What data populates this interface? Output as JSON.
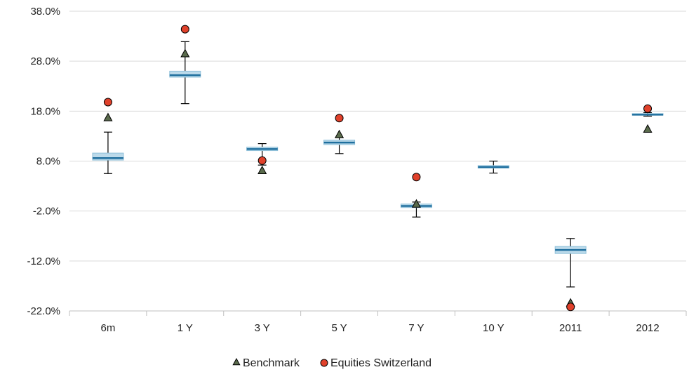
{
  "chart_data": {
    "type": "box",
    "categories": [
      "6m",
      "1 Y",
      "3 Y",
      "5 Y",
      "7 Y",
      "10 Y",
      "2011",
      "2012"
    ],
    "ylim": [
      -22,
      38
    ],
    "yticks": [
      -22,
      -12,
      -2,
      8,
      18,
      28,
      38
    ],
    "ytick_labels": [
      "-22.0%",
      "-12.0%",
      "-2.0%",
      "8.0%",
      "18.0%",
      "28.0%",
      "38.0%"
    ],
    "grid": true,
    "legend_position": "bottom",
    "box_stats": [
      {
        "whisker_low": 5.5,
        "q1": 8.2,
        "median": 8.6,
        "q3": 9.6,
        "whisker_high": 13.8
      },
      {
        "whisker_low": 19.5,
        "q1": 24.8,
        "median": 25.2,
        "q3": 26.0,
        "whisker_high": 31.9
      },
      {
        "whisker_low": 7.2,
        "q1": 10.1,
        "median": 10.4,
        "q3": 10.8,
        "whisker_high": 11.5
      },
      {
        "whisker_low": 9.5,
        "q1": 11.3,
        "median": 11.7,
        "q3": 12.2,
        "whisker_high": 12.7
      },
      {
        "whisker_low": -3.2,
        "q1": -1.3,
        "median": -1.0,
        "q3": -0.6,
        "whisker_high": -0.2
      },
      {
        "whisker_low": 5.6,
        "q1": 6.6,
        "median": 6.8,
        "q3": 7.1,
        "whisker_high": 8.0
      },
      {
        "whisker_low": -17.2,
        "q1": -10.5,
        "median": -9.8,
        "q3": -9.1,
        "whisker_high": -7.5
      },
      {
        "whisker_low": 17.0,
        "q1": 17.2,
        "median": 17.3,
        "q3": 17.5,
        "whisker_high": 17.7
      }
    ],
    "series": [
      {
        "name": "Benchmark",
        "marker": "triangle",
        "color": "#5a6b4c",
        "values": [
          16.7,
          29.5,
          6.1,
          13.3,
          -0.6,
          null,
          -20.4,
          14.4
        ]
      },
      {
        "name": "Equities Switzerland",
        "marker": "circle",
        "color": "#e0412b",
        "values": [
          19.8,
          34.4,
          8.1,
          16.6,
          4.8,
          null,
          -21.2,
          18.5
        ]
      }
    ],
    "colors": {
      "box_light": "#bcdaea",
      "box_edge": "#8fc0da",
      "median": "#1f6f9e",
      "grid": "#d9d9d9",
      "axis": "#bfbfbf",
      "whisker": "#000000"
    }
  }
}
